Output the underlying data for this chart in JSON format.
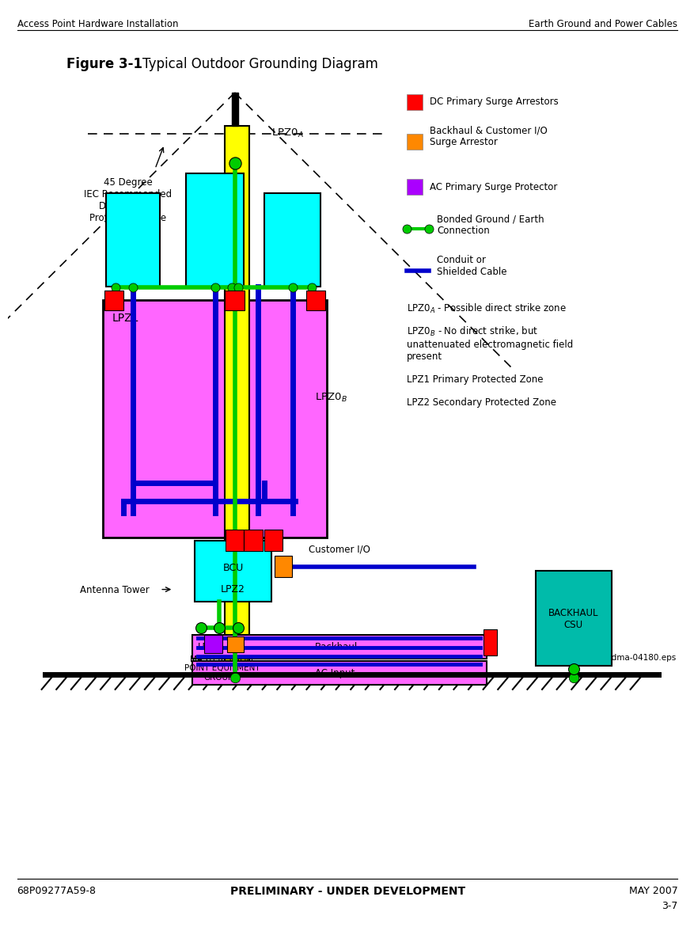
{
  "title_bold": "Figure 3-1",
  "title_normal": "Typical Outdoor Grounding Diagram",
  "header_left": "Access Point Hardware Installation",
  "header_right": "Earth Ground and Power Cables",
  "footer_left": "68P09277A59-8",
  "footer_right": "MAY 2007",
  "footer_center": "PRELIMINARY - UNDER DEVELOPMENT",
  "footer_page": "3-7",
  "fig_note": "ti-cdma-04180.eps",
  "colors": {
    "cyan": "#00FFFF",
    "magenta": "#FF66FF",
    "yellow": "#FFFF00",
    "green": "#00CC00",
    "blue": "#0000CC",
    "red": "#FF0000",
    "orange": "#FF8800",
    "purple": "#AA00FF",
    "teal": "#00BBAA",
    "black": "#000000",
    "white": "#FFFFFF"
  }
}
